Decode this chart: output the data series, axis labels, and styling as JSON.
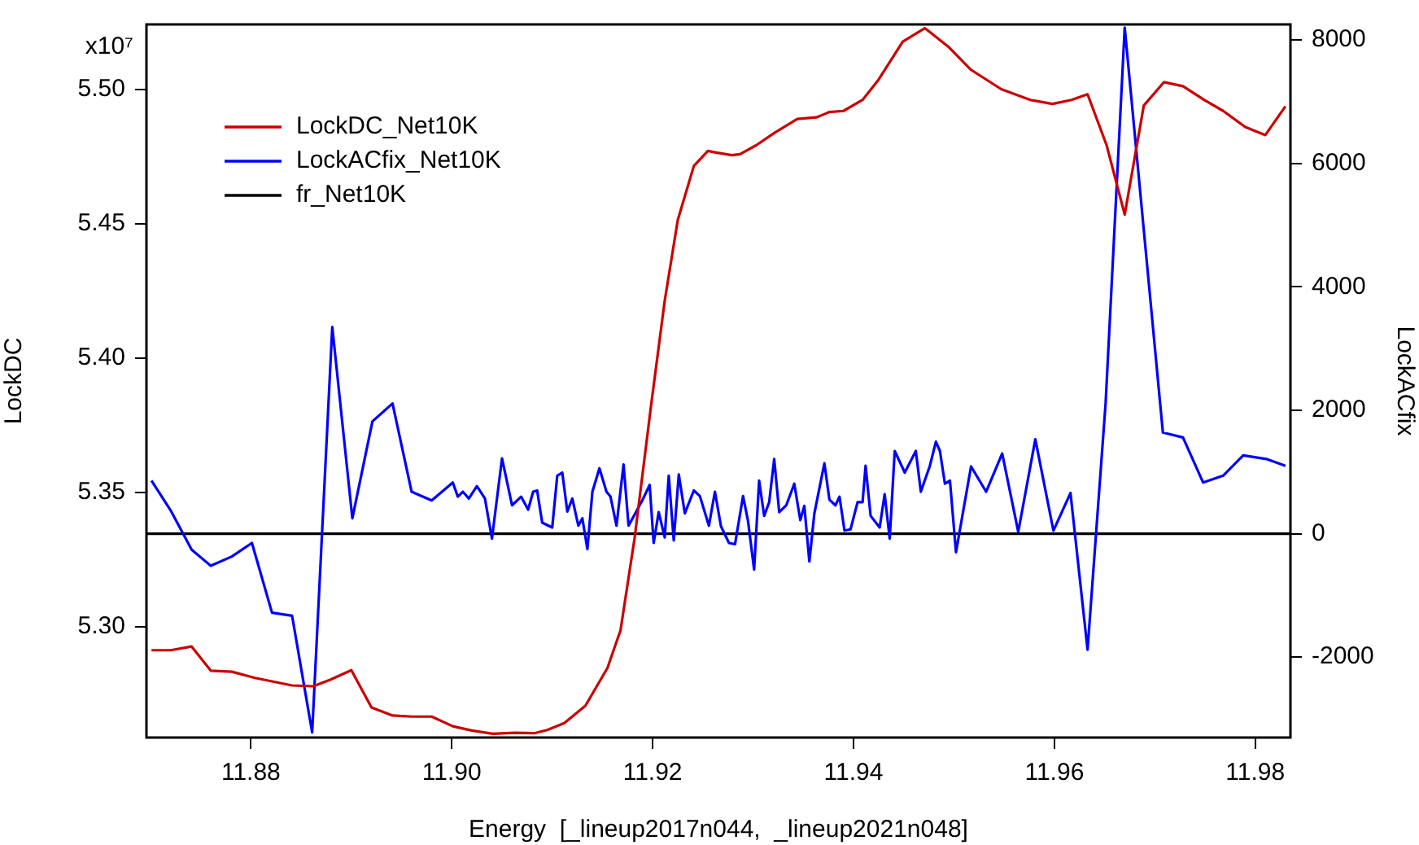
{
  "chart_data": {
    "type": "line",
    "xlabel": "Energy  [_lineup2017n044,  _lineup2021n048]",
    "ylabel": "LockDC",
    "y2label": "LockACfix",
    "xlim": [
      11.8696,
      11.9835
    ],
    "xticks": [
      11.88,
      {
        "value": 11.9,
        "label": "11.90"
      },
      11.92,
      11.94,
      11.96,
      11.98
    ],
    "ylim": [
      5.2588,
      5.5243
    ],
    "yticks": [
      {
        "value": 5.3,
        "label": "5.30"
      },
      5.35,
      {
        "value": 5.4,
        "label": "5.40"
      },
      5.45,
      {
        "value": 5.5,
        "label": "5.50"
      }
    ],
    "annotations": [
      "x10⁷"
    ],
    "y2lim": [
      -3303,
      8252
    ],
    "y2ticks": [
      -2000,
      0,
      2000,
      4000,
      6000,
      8000
    ],
    "legend": "top left",
    "marker": "none",
    "line_style": "solid",
    "series": [
      {
        "name": "LockDC_Net10K",
        "color": "#cc0000",
        "x": [
          11.8701,
          11.872,
          11.8741,
          11.876,
          11.8781,
          11.8804,
          11.8841,
          11.8862,
          11.8879,
          11.89,
          11.892,
          11.8941,
          11.896,
          11.898,
          11.9001,
          11.902,
          11.9041,
          11.9063,
          11.9082,
          11.9095,
          11.9112,
          11.9133,
          11.9155,
          11.9168,
          11.9182,
          11.9198,
          11.9212,
          11.9225,
          11.9241,
          11.9255,
          11.9263,
          11.9279,
          11.9287,
          11.9303,
          11.9322,
          11.9344,
          11.9363,
          11.9376,
          11.939,
          11.9409,
          11.9425,
          11.9449,
          11.9471,
          11.9495,
          11.9517,
          11.9547,
          11.9576,
          11.9598,
          11.9617,
          11.9633,
          11.9652,
          11.967,
          11.9689,
          11.9709,
          11.9728,
          11.9749,
          11.9768,
          11.979,
          11.981,
          11.983
        ],
        "values": [
          5.2913,
          5.2913,
          5.2927,
          5.2837,
          5.2833,
          5.281,
          5.2782,
          5.2779,
          5.2803,
          5.2839,
          5.27,
          5.267,
          5.2666,
          5.2666,
          5.263,
          5.2614,
          5.2602,
          5.2606,
          5.2604,
          5.2616,
          5.2642,
          5.2706,
          5.2847,
          5.2987,
          5.333,
          5.3812,
          5.4214,
          5.4515,
          5.4716,
          5.4772,
          5.4766,
          5.4756,
          5.476,
          5.4793,
          5.4841,
          5.4891,
          5.4897,
          5.4917,
          5.4921,
          5.4962,
          5.5038,
          5.5179,
          5.5229,
          5.5158,
          5.5074,
          5.5002,
          5.4962,
          5.4947,
          5.4962,
          5.4983,
          5.4793,
          5.4535,
          5.4941,
          5.5028,
          5.5013,
          5.4962,
          5.4921,
          5.4861,
          5.4831,
          5.4938
        ]
      },
      {
        "name": "LockACfix_Net10K",
        "color": "#0000ff",
        "axis": "y2",
        "x": [
          11.8701,
          11.872,
          11.8741,
          11.876,
          11.8781,
          11.8801,
          11.8821,
          11.8841,
          11.8861,
          11.8881,
          11.8901,
          11.8921,
          11.8941,
          11.896,
          11.898,
          11.9001,
          11.9006,
          11.9011,
          11.9017,
          11.9025,
          11.9033,
          11.904,
          11.905,
          11.906,
          11.9069,
          11.9076,
          11.9081,
          11.9085,
          11.909,
          11.91,
          11.9105,
          11.911,
          11.9115,
          11.912,
          11.9126,
          11.913,
          11.9135,
          11.914,
          11.9147,
          11.9154,
          11.9158,
          11.9164,
          11.9171,
          11.9176,
          11.919,
          11.9197,
          11.9201,
          11.9206,
          11.9212,
          11.9216,
          11.9221,
          11.9226,
          11.9232,
          11.9241,
          11.9247,
          11.9256,
          11.9262,
          11.9268,
          11.9276,
          11.9282,
          11.929,
          11.9295,
          11.9301,
          11.9306,
          11.9311,
          11.9316,
          11.9321,
          11.9326,
          11.9333,
          11.9341,
          11.9347,
          11.9351,
          11.9356,
          11.9361,
          11.9371,
          11.9376,
          11.9382,
          11.9386,
          11.9391,
          11.9397,
          11.9404,
          11.9409,
          11.9412,
          11.9417,
          11.9426,
          11.9431,
          11.9436,
          11.9441,
          11.9451,
          11.9462,
          11.9467,
          11.9476,
          11.9482,
          11.9486,
          11.9491,
          11.9496,
          11.9502,
          11.9517,
          11.9532,
          11.9548,
          11.9564,
          11.9581,
          11.9599,
          11.9616,
          11.9633,
          11.9651,
          11.967,
          11.9689,
          11.9708,
          11.9728,
          11.9748,
          11.9768,
          11.9788,
          11.9811,
          11.983
        ],
        "values": [
          860,
          380,
          -260,
          -520,
          -370,
          -150,
          -1280,
          -1330,
          -3220,
          3350,
          250,
          1820,
          2110,
          680,
          540,
          830,
          600,
          680,
          570,
          770,
          570,
          -80,
          1220,
          460,
          600,
          390,
          680,
          700,
          180,
          100,
          940,
          990,
          360,
          570,
          130,
          250,
          -250,
          680,
          1060,
          680,
          600,
          130,
          1120,
          130,
          550,
          790,
          -150,
          350,
          -60,
          940,
          -110,
          960,
          330,
          700,
          610,
          130,
          680,
          120,
          -150,
          -170,
          610,
          200,
          -580,
          860,
          290,
          510,
          1210,
          350,
          460,
          810,
          220,
          450,
          -450,
          330,
          1140,
          550,
          460,
          600,
          50,
          70,
          510,
          510,
          1100,
          290,
          100,
          640,
          -80,
          1340,
          990,
          1340,
          680,
          1100,
          1490,
          1340,
          810,
          860,
          -300,
          1090,
          680,
          1300,
          30,
          1530,
          50,
          660,
          -1880,
          2120,
          8200,
          4920,
          1640,
          1560,
          830,
          940,
          1270,
          1210,
          1100
        ]
      },
      {
        "name": "fr_Net10K",
        "color": "#000000",
        "axis": "y2",
        "x": [
          11.8696,
          11.9835
        ],
        "values": [
          0,
          0
        ]
      }
    ]
  }
}
